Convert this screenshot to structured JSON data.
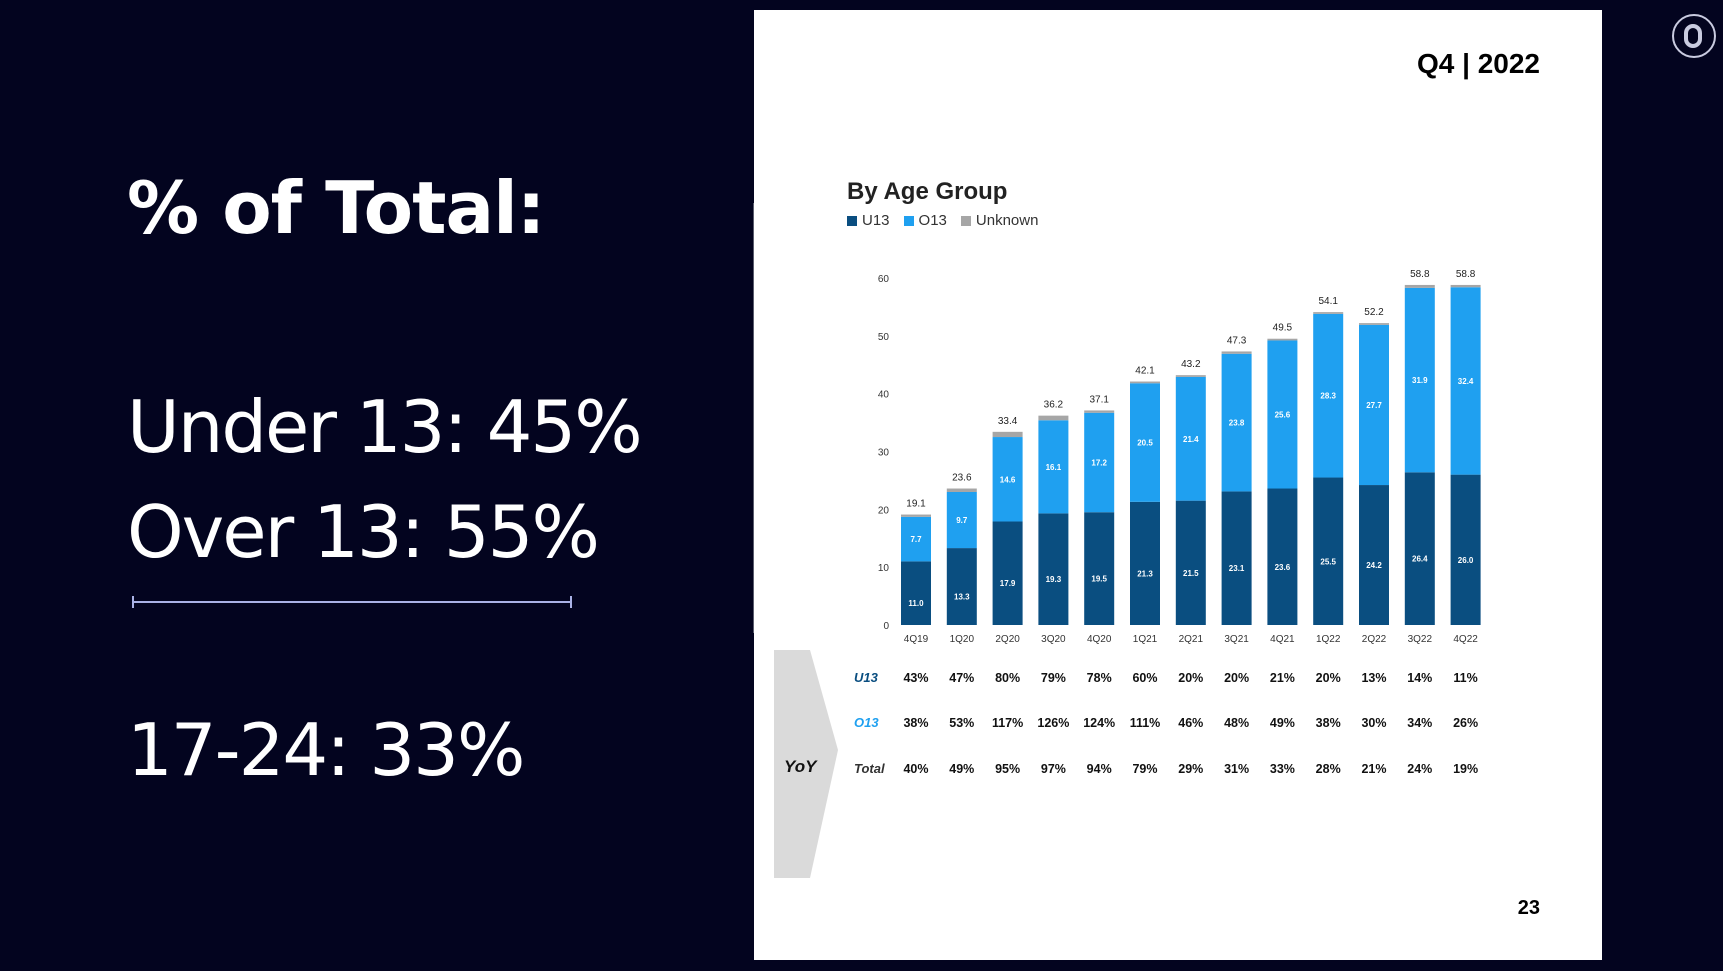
{
  "left": {
    "heading": "% of Total:",
    "under13": "Under 13: 45%",
    "over13": "Over 13: 55%",
    "age_17_24": "17-24: 33%"
  },
  "slide": {
    "quarter": "Q4 | 2022",
    "page_number": "23"
  },
  "colors": {
    "u13": "#0a4e80",
    "o13": "#1fa0f0",
    "unknown": "#a6a6a6"
  },
  "chart_data": {
    "type": "bar",
    "stacked": true,
    "title": "By Age Group",
    "categories": [
      "4Q19",
      "1Q20",
      "2Q20",
      "3Q20",
      "4Q20",
      "1Q21",
      "2Q21",
      "3Q21",
      "4Q21",
      "1Q22",
      "2Q22",
      "3Q22",
      "4Q22"
    ],
    "series": [
      {
        "name": "U13",
        "values": [
          11.0,
          13.3,
          17.9,
          19.3,
          19.5,
          21.3,
          21.5,
          23.1,
          23.6,
          25.5,
          24.2,
          26.4,
          26.0
        ]
      },
      {
        "name": "O13",
        "values": [
          7.7,
          9.7,
          14.6,
          16.1,
          17.2,
          20.5,
          21.4,
          23.8,
          25.6,
          28.3,
          27.7,
          31.9,
          32.4
        ]
      },
      {
        "name": "Unknown",
        "values": [
          0.4,
          0.6,
          0.9,
          0.8,
          0.4,
          0.3,
          0.3,
          0.4,
          0.3,
          0.3,
          0.3,
          0.5,
          0.4
        ]
      }
    ],
    "totals": [
      19.1,
      23.6,
      33.4,
      36.2,
      37.1,
      42.1,
      43.2,
      47.3,
      49.5,
      54.1,
      52.2,
      58.8,
      58.8
    ],
    "yticks": [
      0,
      10,
      20,
      30,
      40,
      50,
      60
    ],
    "ylim": [
      0,
      60
    ],
    "legend_position": "top-left",
    "grid": false,
    "yoy": {
      "label": "YoY",
      "rows": [
        {
          "name": "U13",
          "values": [
            "43%",
            "47%",
            "80%",
            "79%",
            "78%",
            "60%",
            "20%",
            "20%",
            "21%",
            "20%",
            "13%",
            "14%",
            "11%"
          ]
        },
        {
          "name": "O13",
          "values": [
            "38%",
            "53%",
            "117%",
            "126%",
            "124%",
            "111%",
            "46%",
            "48%",
            "49%",
            "38%",
            "30%",
            "34%",
            "26%"
          ]
        },
        {
          "name": "Total",
          "values": [
            "40%",
            "49%",
            "95%",
            "97%",
            "94%",
            "79%",
            "29%",
            "31%",
            "33%",
            "28%",
            "21%",
            "24%",
            "19%"
          ]
        }
      ]
    }
  }
}
